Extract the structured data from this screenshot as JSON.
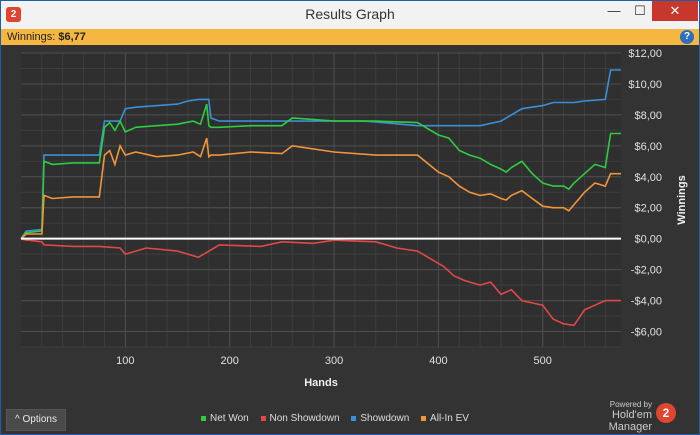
{
  "window": {
    "title": "Results Graph",
    "badge": "2",
    "controls": {
      "minimize": "—",
      "maximize": "☐",
      "close": "✕"
    }
  },
  "infobar": {
    "label": "Winnings:",
    "value": "$6,77",
    "help": "?"
  },
  "footer": {
    "options_label": "Options",
    "options_icon": "^",
    "legend": [
      {
        "name": "Net Won",
        "color": "#2ecc40"
      },
      {
        "name": "Non Showdown",
        "color": "#e04848"
      },
      {
        "name": "Showdown",
        "color": "#3a8fd8"
      },
      {
        "name": "All-In EV",
        "color": "#f0953a"
      }
    ],
    "powered_by": "Powered by",
    "brand": "Hold'em Manager",
    "brand_logo": "2"
  },
  "chart_data": {
    "type": "line",
    "xlabel": "Hands",
    "ylabel": "Winnings",
    "xlim": [
      0,
      575
    ],
    "ylim": [
      -7,
      12
    ],
    "x_ticks": [
      100,
      200,
      300,
      400,
      500
    ],
    "x_tick_labels": [
      "100",
      "200",
      "300",
      "400",
      "500"
    ],
    "y_ticks": [
      12,
      10,
      8,
      6,
      4,
      2,
      0,
      -2,
      -4,
      -6
    ],
    "y_tick_labels": [
      "$12,00",
      "$10,00",
      "$8,00",
      "$6,00",
      "$4,00",
      "$2,00",
      "$0,00",
      "-$2,00",
      "-$4,00",
      "-$6,00"
    ],
    "grid": true,
    "zero_line": true,
    "series": [
      {
        "name": "Showdown",
        "color": "#3a8fd8",
        "x": [
          0,
          5,
          7,
          20,
          22,
          75,
          80,
          95,
          100,
          110,
          150,
          160,
          170,
          175,
          180,
          182,
          190,
          250,
          300,
          330,
          380,
          420,
          440,
          460,
          470,
          480,
          500,
          510,
          520,
          530,
          540,
          560,
          565,
          575
        ],
        "y": [
          0,
          0.5,
          0.5,
          0.6,
          5.4,
          5.4,
          7.6,
          7.6,
          8.4,
          8.5,
          8.7,
          8.9,
          9.0,
          9.0,
          9.0,
          7.8,
          7.6,
          7.6,
          7.6,
          7.6,
          7.3,
          7.3,
          7.3,
          7.6,
          8.0,
          8.4,
          8.6,
          8.8,
          8.8,
          8.8,
          8.9,
          9.0,
          10.9,
          10.9
        ]
      },
      {
        "name": "Net Won",
        "color": "#2ecc40",
        "x": [
          0,
          5,
          7,
          20,
          22,
          30,
          50,
          75,
          80,
          85,
          90,
          95,
          100,
          110,
          130,
          150,
          165,
          172,
          178,
          180,
          182,
          190,
          220,
          250,
          260,
          300,
          340,
          380,
          400,
          410,
          420,
          430,
          440,
          450,
          460,
          465,
          470,
          480,
          490,
          500,
          510,
          520,
          525,
          530,
          540,
          550,
          560,
          565,
          575
        ],
        "y": [
          0,
          0.4,
          0.4,
          0.5,
          5.0,
          4.8,
          4.9,
          4.9,
          7.2,
          7.5,
          7.0,
          7.6,
          6.9,
          7.2,
          7.3,
          7.4,
          7.6,
          7.4,
          8.7,
          7.3,
          7.2,
          7.2,
          7.3,
          7.3,
          7.8,
          7.6,
          7.6,
          7.5,
          6.7,
          6.5,
          5.7,
          5.4,
          5.2,
          4.8,
          4.5,
          4.3,
          4.6,
          5.0,
          4.2,
          3.6,
          3.4,
          3.4,
          3.2,
          3.6,
          4.2,
          4.8,
          4.6,
          6.8,
          6.8
        ]
      },
      {
        "name": "All-In EV",
        "color": "#f0953a",
        "x": [
          0,
          5,
          7,
          20,
          22,
          30,
          50,
          75,
          80,
          85,
          90,
          95,
          100,
          110,
          130,
          150,
          165,
          172,
          178,
          180,
          182,
          190,
          220,
          250,
          260,
          300,
          340,
          380,
          400,
          410,
          420,
          430,
          440,
          450,
          460,
          465,
          470,
          480,
          490,
          500,
          510,
          520,
          525,
          530,
          540,
          550,
          560,
          565,
          575
        ],
        "y": [
          0,
          0.3,
          0.3,
          0.3,
          2.8,
          2.6,
          2.7,
          2.7,
          5.4,
          5.7,
          4.8,
          6.0,
          5.4,
          5.6,
          5.3,
          5.4,
          5.6,
          5.3,
          6.5,
          5.3,
          5.4,
          5.4,
          5.6,
          5.5,
          6.0,
          5.6,
          5.4,
          5.4,
          4.3,
          4.0,
          3.4,
          3.0,
          2.8,
          2.9,
          2.6,
          2.5,
          2.8,
          3.1,
          2.6,
          2.1,
          2.0,
          2.0,
          1.8,
          2.2,
          3.0,
          3.6,
          3.4,
          4.2,
          4.2
        ]
      },
      {
        "name": "Non Showdown",
        "color": "#e04848",
        "x": [
          0,
          5,
          7,
          20,
          22,
          50,
          75,
          95,
          100,
          120,
          150,
          170,
          190,
          230,
          250,
          280,
          300,
          340,
          360,
          380,
          395,
          405,
          415,
          425,
          440,
          450,
          460,
          470,
          480,
          500,
          510,
          520,
          530,
          540,
          550,
          560,
          575
        ],
        "y": [
          0,
          -0.1,
          -0.1,
          -0.2,
          -0.4,
          -0.5,
          -0.5,
          -0.6,
          -1.0,
          -0.6,
          -0.8,
          -1.2,
          -0.4,
          -0.5,
          -0.2,
          -0.3,
          -0.1,
          -0.2,
          -0.6,
          -0.8,
          -1.4,
          -1.8,
          -2.4,
          -2.7,
          -3.0,
          -2.8,
          -3.6,
          -3.3,
          -4.0,
          -4.3,
          -5.2,
          -5.5,
          -5.6,
          -4.6,
          -4.3,
          -4.0,
          -4.0
        ]
      }
    ]
  }
}
